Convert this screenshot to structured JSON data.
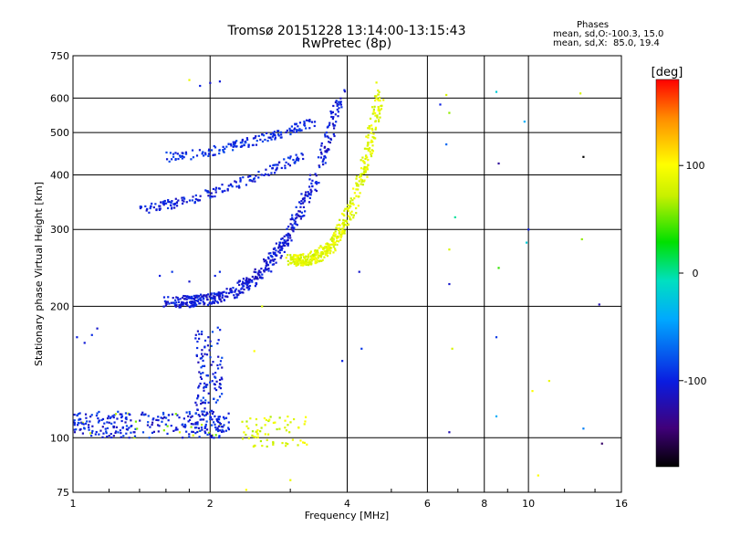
{
  "header": {
    "title_line1": "Tromsø 20151228 13:14:00-13:15:43",
    "title_line2": "RwPretec (8p)"
  },
  "phases_box": {
    "heading": "Phases",
    "line_o": "mean, sd,O:-100.3, 15.0",
    "line_x": "mean, sd,X:  85.0, 19.4"
  },
  "colorbar": {
    "unit_label": "[deg]",
    "ticks": [
      {
        "value": 100,
        "label": "100"
      },
      {
        "value": 0,
        "label": "0"
      },
      {
        "value": -100,
        "label": "-100"
      }
    ],
    "range": [
      -180,
      180
    ]
  },
  "chart_data": {
    "type": "scatter",
    "title": "Tromsø 20151228 13:14:00-13:15:43",
    "subtitle": "RwPretec (8p)",
    "xlabel": "Frequency [MHz]",
    "ylabel": "Stationary phase Virtual Height [km]",
    "x_scale": "log",
    "y_scale": "log",
    "xlim": [
      1,
      16
    ],
    "ylim": [
      75,
      750
    ],
    "x_ticks": [
      {
        "value": 1,
        "label": "1"
      },
      {
        "value": 2,
        "label": "2"
      },
      {
        "value": 4,
        "label": "4"
      },
      {
        "value": 6,
        "label": "6"
      },
      {
        "value": 8,
        "label": "8"
      },
      {
        "value": 10,
        "label": "10"
      },
      {
        "value": 16,
        "label": "16"
      }
    ],
    "y_ticks": [
      {
        "value": 75,
        "label": "75"
      },
      {
        "value": 100,
        "label": "100"
      },
      {
        "value": 200,
        "label": "200"
      },
      {
        "value": 300,
        "label": "300"
      },
      {
        "value": 400,
        "label": "400"
      },
      {
        "value": 500,
        "label": "500"
      },
      {
        "value": 600,
        "label": "600"
      },
      {
        "value": 750,
        "label": "750"
      }
    ],
    "x_gridlines": [
      2,
      4,
      6,
      8,
      10
    ],
    "y_gridlines": [
      100,
      200,
      300,
      400,
      500,
      600
    ],
    "color_variable": "phase [deg]",
    "traces": [
      {
        "x_range": [
          1.6,
          3.9
        ],
        "y_range": [
          205,
          630
        ],
        "phase": -105,
        "curve": "O-mode F2 trace"
      },
      {
        "x_range": [
          3.0,
          4.75
        ],
        "y_range": [
          255,
          640
        ],
        "phase": 85,
        "curve": "X-mode F2 trace"
      },
      {
        "x_range": [
          1.4,
          3.2
        ],
        "y_range": [
          335,
          445
        ],
        "phase": -100,
        "curve": "multi-hop trace"
      },
      {
        "x_range": [
          1.6,
          3.4
        ],
        "y_range": [
          440,
          530
        ],
        "phase": -95,
        "curve": "multi-hop trace"
      }
    ],
    "points": [
      {
        "x": 1.02,
        "y": 170,
        "phase": -100
      },
      {
        "x": 1.06,
        "y": 165,
        "phase": -105
      },
      {
        "x": 1.1,
        "y": 172,
        "phase": -95
      },
      {
        "x": 1.13,
        "y": 178,
        "phase": -110
      },
      {
        "x": 1.55,
        "y": 235,
        "phase": -100
      },
      {
        "x": 1.65,
        "y": 240,
        "phase": -90
      },
      {
        "x": 1.8,
        "y": 228,
        "phase": -110
      },
      {
        "x": 2.05,
        "y": 235,
        "phase": -100
      },
      {
        "x": 2.1,
        "y": 240,
        "phase": -95
      },
      {
        "x": 1.8,
        "y": 660,
        "phase": 90
      },
      {
        "x": 1.9,
        "y": 640,
        "phase": -100
      },
      {
        "x": 2.0,
        "y": 650,
        "phase": -110
      },
      {
        "x": 2.1,
        "y": 655,
        "phase": -105
      },
      {
        "x": 3.9,
        "y": 150,
        "phase": -100
      },
      {
        "x": 4.3,
        "y": 160,
        "phase": -90
      },
      {
        "x": 4.25,
        "y": 240,
        "phase": -110
      },
      {
        "x": 6.4,
        "y": 580,
        "phase": -100
      },
      {
        "x": 6.6,
        "y": 610,
        "phase": 80
      },
      {
        "x": 6.7,
        "y": 555,
        "phase": 60
      },
      {
        "x": 6.6,
        "y": 470,
        "phase": -70
      },
      {
        "x": 6.9,
        "y": 320,
        "phase": 0
      },
      {
        "x": 6.7,
        "y": 270,
        "phase": 80
      },
      {
        "x": 6.7,
        "y": 225,
        "phase": -110
      },
      {
        "x": 6.8,
        "y": 160,
        "phase": 80
      },
      {
        "x": 6.7,
        "y": 103,
        "phase": -120
      },
      {
        "x": 8.5,
        "y": 620,
        "phase": -20
      },
      {
        "x": 8.6,
        "y": 425,
        "phase": -130
      },
      {
        "x": 8.6,
        "y": 245,
        "phase": 40
      },
      {
        "x": 8.5,
        "y": 170,
        "phase": -90
      },
      {
        "x": 8.5,
        "y": 112,
        "phase": -40
      },
      {
        "x": 9.8,
        "y": 530,
        "phase": -40
      },
      {
        "x": 9.9,
        "y": 280,
        "phase": -20
      },
      {
        "x": 10.0,
        "y": 300,
        "phase": -100
      },
      {
        "x": 10.2,
        "y": 128,
        "phase": 100
      },
      {
        "x": 10.5,
        "y": 82,
        "phase": 100
      },
      {
        "x": 11.1,
        "y": 135,
        "phase": 90
      },
      {
        "x": 13.0,
        "y": 615,
        "phase": 80
      },
      {
        "x": 13.2,
        "y": 440,
        "phase": -180
      },
      {
        "x": 13.1,
        "y": 285,
        "phase": 60
      },
      {
        "x": 13.2,
        "y": 105,
        "phase": -60
      },
      {
        "x": 14.3,
        "y": 202,
        "phase": -120
      },
      {
        "x": 14.5,
        "y": 97,
        "phase": -150
      },
      {
        "x": 2.6,
        "y": 200,
        "phase": 80
      },
      {
        "x": 2.5,
        "y": 158,
        "phase": 100
      },
      {
        "x": 3.0,
        "y": 80,
        "phase": 90
      },
      {
        "x": 2.4,
        "y": 76,
        "phase": 100
      }
    ],
    "grid": true,
    "legend": "colorbar right"
  }
}
